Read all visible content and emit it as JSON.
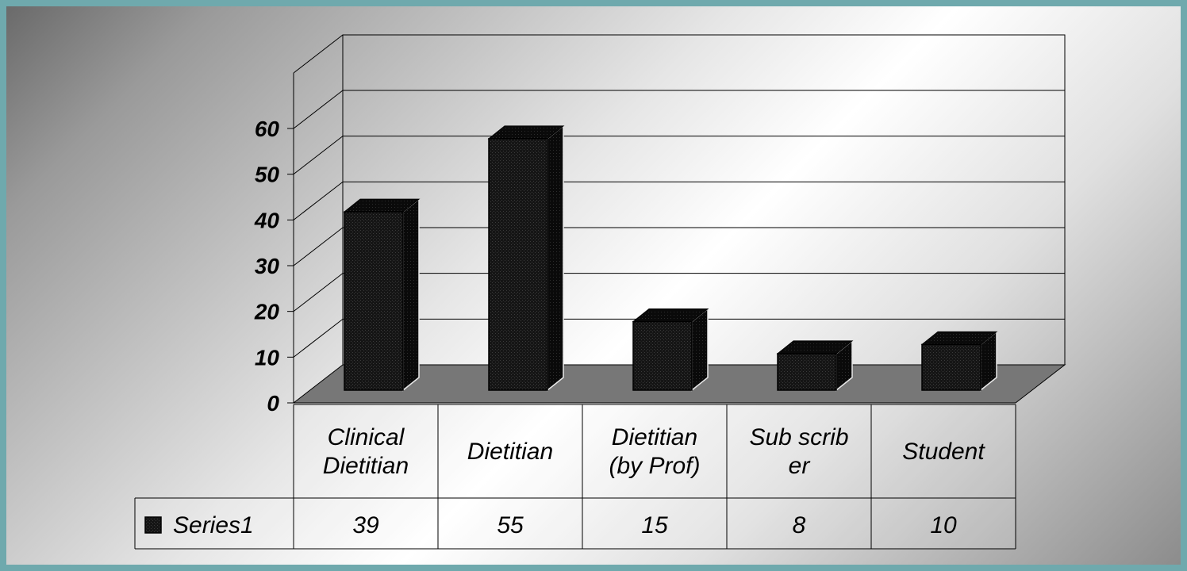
{
  "chart_data": {
    "type": "bar",
    "categories": [
      [
        "Clinical",
        "Dietitian"
      ],
      [
        "Dietitian"
      ],
      [
        "Dietitian",
        "(by Prof)"
      ],
      [
        "Sub scrib",
        "er"
      ],
      [
        "Student"
      ]
    ],
    "series": [
      {
        "name": "Series1",
        "values": [
          39,
          55,
          15,
          8,
          10
        ]
      }
    ],
    "y_ticks": [
      "0",
      "10",
      "20",
      "30",
      "40",
      "50",
      "60"
    ],
    "ylim": [
      0,
      60
    ],
    "grid": true,
    "data_table": true,
    "bar_color": "#111111",
    "floor_color": "#777777"
  }
}
